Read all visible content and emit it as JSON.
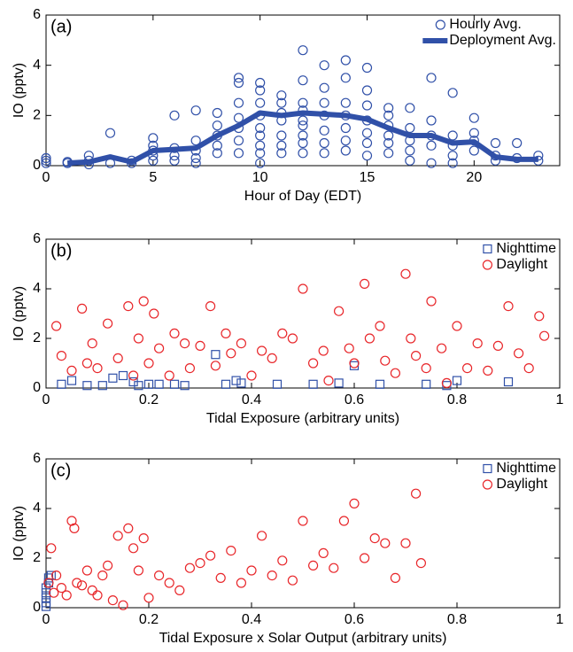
{
  "chart_data": [
    {
      "type": "scatter",
      "panel_label": "(a)",
      "xlabel": "Hour of Day (EDT)",
      "ylabel": "IO  (pptv)",
      "xlim": [
        0,
        24
      ],
      "xticks": [
        0,
        5,
        10,
        15,
        20
      ],
      "ylim": [
        0,
        6
      ],
      "yticks": [
        0,
        2,
        4,
        6
      ],
      "legend": "upper right",
      "series": [
        {
          "name": "Hourly Avg.",
          "mode": "marker",
          "marker": "circle",
          "color": "#3050a8",
          "x": [
            0,
            0,
            0,
            1,
            1,
            2,
            2,
            2,
            3,
            3,
            4,
            4,
            5,
            5,
            5,
            5,
            5,
            6,
            6,
            6,
            6,
            7,
            7,
            7,
            7,
            7,
            8,
            8,
            8,
            8,
            8,
            9,
            9,
            9,
            9,
            9,
            9,
            9,
            10,
            10,
            10,
            10,
            10,
            10,
            10,
            10,
            10,
            11,
            11,
            11,
            11,
            11,
            11,
            11,
            12,
            12,
            12,
            12,
            12,
            12,
            12,
            12,
            12,
            13,
            13,
            13,
            13,
            13,
            13,
            13,
            14,
            14,
            14,
            14,
            14,
            14,
            14,
            15,
            15,
            15,
            15,
            15,
            15,
            15,
            16,
            16,
            16,
            16,
            16,
            16,
            17,
            17,
            17,
            17,
            17,
            18,
            18,
            18,
            18,
            18,
            19,
            19,
            19,
            19,
            19,
            20,
            20,
            20,
            20,
            21,
            21,
            21,
            22,
            22,
            23,
            23
          ],
          "values": [
            0.1,
            0.2,
            0.3,
            0.1,
            0.15,
            0.2,
            0.4,
            0.05,
            1.3,
            0.1,
            0.1,
            0.2,
            1.1,
            0.8,
            0.6,
            0.4,
            0.2,
            2.0,
            0.7,
            0.4,
            0.2,
            2.2,
            1.0,
            0.6,
            0.3,
            0.1,
            2.1,
            1.6,
            1.2,
            0.8,
            0.5,
            3.5,
            3.3,
            2.5,
            1.9,
            1.5,
            1.0,
            0.5,
            3.3,
            3.0,
            2.5,
            2.0,
            1.5,
            1.2,
            0.8,
            0.5,
            0.1,
            2.8,
            2.5,
            2.1,
            1.8,
            1.2,
            0.8,
            0.5,
            4.6,
            3.4,
            2.5,
            2.2,
            1.8,
            1.6,
            1.2,
            0.9,
            0.5,
            4.0,
            3.1,
            2.5,
            2.0,
            1.4,
            0.9,
            0.5,
            4.2,
            3.5,
            2.5,
            2.0,
            1.5,
            1.0,
            0.6,
            3.9,
            3.0,
            2.4,
            1.8,
            1.3,
            0.9,
            0.4,
            2.3,
            2.0,
            1.6,
            1.2,
            0.9,
            0.5,
            2.3,
            1.5,
            1.0,
            0.6,
            0.2,
            3.5,
            1.8,
            1.2,
            0.8,
            0.1,
            2.9,
            1.2,
            0.8,
            0.4,
            0.1,
            1.9,
            1.3,
            1.0,
            0.6,
            0.9,
            0.4,
            0.2,
            0.9,
            0.3,
            0.4,
            0.2
          ]
        },
        {
          "name": "Deployment Avg.",
          "mode": "line",
          "color": "#3050a8",
          "x": [
            1,
            2,
            3,
            4,
            5,
            6,
            7,
            8,
            9,
            10,
            11,
            12,
            13,
            14,
            15,
            16,
            17,
            18,
            19,
            20,
            21,
            22,
            23
          ],
          "values": [
            0.1,
            0.15,
            0.35,
            0.15,
            0.6,
            0.65,
            0.7,
            1.2,
            1.6,
            2.1,
            2.0,
            2.1,
            2.05,
            2.0,
            1.85,
            1.5,
            1.2,
            1.2,
            0.9,
            0.95,
            0.35,
            0.25,
            0.25
          ]
        }
      ]
    },
    {
      "type": "scatter",
      "panel_label": "(b)",
      "xlabel": "Tidal Exposure (arbitrary units)",
      "ylabel": "IO  (pptv)",
      "xlim": [
        0,
        1
      ],
      "xticks": [
        0,
        0.2,
        0.4,
        0.6,
        0.8,
        1
      ],
      "ylim": [
        0,
        6
      ],
      "yticks": [
        0,
        2,
        4,
        6
      ],
      "legend": "upper right",
      "series": [
        {
          "name": "Nighttime",
          "mode": "marker",
          "marker": "square",
          "color": "#3050a8",
          "x": [
            0.03,
            0.05,
            0.08,
            0.11,
            0.13,
            0.15,
            0.17,
            0.18,
            0.2,
            0.22,
            0.25,
            0.27,
            0.33,
            0.35,
            0.37,
            0.38,
            0.45,
            0.52,
            0.57,
            0.6,
            0.65,
            0.74,
            0.78,
            0.8,
            0.9
          ],
          "values": [
            0.15,
            0.3,
            0.1,
            0.1,
            0.4,
            0.5,
            0.25,
            0.1,
            0.15,
            0.15,
            0.15,
            0.1,
            1.35,
            0.15,
            0.3,
            0.2,
            0.15,
            0.15,
            0.2,
            0.9,
            0.15,
            0.15,
            0.1,
            0.3,
            0.25
          ]
        },
        {
          "name": "Daylight",
          "mode": "marker",
          "marker": "circle",
          "color": "#e8262a",
          "x": [
            0.02,
            0.03,
            0.05,
            0.07,
            0.08,
            0.09,
            0.1,
            0.12,
            0.14,
            0.16,
            0.17,
            0.18,
            0.19,
            0.2,
            0.21,
            0.22,
            0.24,
            0.25,
            0.27,
            0.28,
            0.3,
            0.32,
            0.33,
            0.35,
            0.36,
            0.38,
            0.4,
            0.42,
            0.44,
            0.46,
            0.48,
            0.5,
            0.52,
            0.54,
            0.55,
            0.57,
            0.59,
            0.6,
            0.62,
            0.63,
            0.65,
            0.66,
            0.68,
            0.7,
            0.71,
            0.72,
            0.74,
            0.75,
            0.77,
            0.78,
            0.8,
            0.82,
            0.84,
            0.86,
            0.88,
            0.9,
            0.92,
            0.94,
            0.96,
            0.97
          ],
          "values": [
            2.5,
            1.3,
            0.7,
            3.2,
            1.0,
            1.8,
            0.8,
            2.6,
            1.2,
            3.3,
            0.5,
            2.0,
            3.5,
            1.0,
            3.0,
            1.6,
            0.5,
            2.2,
            1.8,
            0.8,
            1.7,
            3.3,
            0.9,
            2.2,
            1.4,
            1.8,
            0.5,
            1.5,
            1.2,
            2.2,
            2.0,
            4.0,
            1.0,
            1.5,
            0.3,
            3.1,
            1.6,
            1.0,
            4.2,
            2.0,
            2.5,
            1.1,
            0.6,
            4.6,
            2.0,
            1.3,
            0.8,
            3.5,
            1.6,
            0.2,
            2.5,
            0.8,
            1.8,
            0.7,
            1.7,
            3.3,
            1.4,
            0.8,
            2.9,
            2.1
          ]
        }
      ]
    },
    {
      "type": "scatter",
      "panel_label": "(c)",
      "xlabel": "Tidal Exposure x Solar Output (arbitrary units)",
      "ylabel": "IO  (pptv)",
      "xlim": [
        0,
        1
      ],
      "xticks": [
        0,
        0.2,
        0.4,
        0.6,
        0.8,
        1
      ],
      "ylim": [
        0,
        6
      ],
      "yticks": [
        0,
        2,
        4,
        6
      ],
      "legend": "upper right",
      "series": [
        {
          "name": "Nighttime",
          "mode": "marker",
          "marker": "square",
          "color": "#3050a8",
          "x": [
            0,
            0,
            0,
            0,
            0,
            0.005,
            0.005,
            0.01
          ],
          "values": [
            0.05,
            0.2,
            0.4,
            0.6,
            0.8,
            1.0,
            1.2,
            1.3
          ]
        },
        {
          "name": "Daylight",
          "mode": "marker",
          "marker": "circle",
          "color": "#e8262a",
          "x": [
            0.005,
            0.01,
            0.015,
            0.02,
            0.03,
            0.04,
            0.05,
            0.055,
            0.06,
            0.07,
            0.08,
            0.09,
            0.1,
            0.11,
            0.12,
            0.13,
            0.14,
            0.15,
            0.16,
            0.17,
            0.18,
            0.19,
            0.2,
            0.22,
            0.24,
            0.26,
            0.28,
            0.3,
            0.32,
            0.34,
            0.36,
            0.38,
            0.4,
            0.42,
            0.44,
            0.46,
            0.48,
            0.5,
            0.52,
            0.54,
            0.56,
            0.58,
            0.6,
            0.62,
            0.64,
            0.66,
            0.68,
            0.7,
            0.72,
            0.73
          ],
          "values": [
            1.0,
            2.4,
            0.6,
            1.3,
            0.8,
            0.5,
            3.5,
            3.2,
            1.0,
            0.9,
            1.5,
            0.7,
            0.5,
            1.3,
            1.7,
            0.3,
            2.9,
            0.1,
            3.2,
            2.4,
            1.5,
            2.8,
            0.4,
            1.3,
            1.0,
            0.7,
            1.6,
            1.8,
            2.1,
            1.2,
            2.3,
            1.0,
            1.5,
            2.9,
            1.3,
            1.9,
            1.1,
            3.5,
            1.7,
            2.2,
            1.6,
            3.5,
            4.2,
            2.0,
            2.8,
            2.6,
            1.2,
            2.6,
            4.6,
            1.8
          ]
        }
      ]
    }
  ]
}
